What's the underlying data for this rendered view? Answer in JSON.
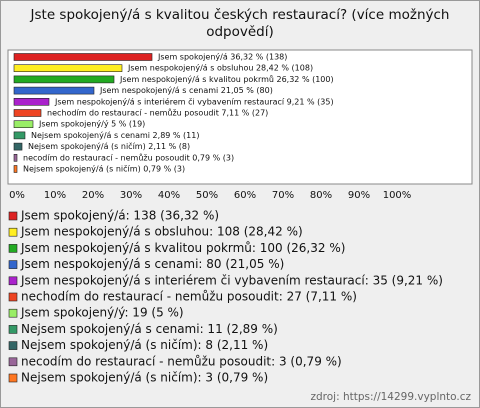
{
  "chart_data": {
    "type": "hbar",
    "title": "Jste spokojený/á s kvalitou českých restaurací? (více možných odpovědí)",
    "categories": [
      "Jsem spokojený/á: 138 (36,32 %)",
      "Jsem nespokojený/á s obsluhou: 108 (28,42 %)",
      "Jsem nespokojený/á s kvalitou pokrmů: 100 (26,32 %)",
      "Jsem nespokojený/á s cenami: 80 (21,05 %)",
      "Jsem nespokojený/á s interiérem či vybavením restaurací: 35 (9,21 %)",
      "nechodím do restaurací - nemůžu posoudit: 27 (7,11 %)",
      "Jsem spokojený/ý: 19 (5 %)",
      "Nejsem spokojený/á s cenami: 11 (2,89 %)",
      "Nejsem spokojený/á (s ničím): 8 (2,11 %)",
      "necodím do restaurací - nemůžu posoudit: 3 (0,79 %)",
      "Nejsem spokojený/á (s ničím): 3 (0,79 %)"
    ],
    "values": [
      36.32,
      28.42,
      26.32,
      21.05,
      9.21,
      7.11,
      5,
      2.89,
      2.11,
      0.79,
      0.79
    ],
    "value_labels": [
      "Jsem spokojený/á 36,32 % (138)",
      "Jsem nespokojený/á s obsluhou 28,42 % (108)",
      "Jsem nespokojený/á s kvalitou pokrmů 26,32 % (100)",
      "Jsem nespokojený/á s cenami 21,05 % (80)",
      "Jsem nespokojený/á s interiérem či vybavením restaurací 9,21 % (35)",
      "nechodím do restaurací - nemůžu posoudit 7,11 % (27)",
      "Jsem spokojený/ý 5 % (19)",
      "Nejsem spokojený/á s cenami 2,89 % (11)",
      "Nejsem spokojený/á (s ničím) 2,11 % (8)",
      "necodím do restaurací - nemůžu posoudit 0,79 % (3)",
      "Nejsem spokojený/á (s ničím) 0,79 % (3)"
    ],
    "colors": [
      "#dd2222",
      "#ffee22",
      "#22aa22",
      "#3366cc",
      "#aa22cc",
      "#ee4422",
      "#99ee66",
      "#339966",
      "#336666",
      "#996699",
      "#ff7722"
    ],
    "xlim": [
      0,
      100
    ],
    "xticks": [
      {
        "value": 0,
        "label": "0%"
      },
      {
        "value": 10,
        "label": "10%"
      },
      {
        "value": 20,
        "label": "20%"
      },
      {
        "value": 30,
        "label": "30%"
      },
      {
        "value": 40,
        "label": "40%"
      },
      {
        "value": 50,
        "label": "50%"
      },
      {
        "value": 60,
        "label": "60%"
      },
      {
        "value": 70,
        "label": "70%"
      },
      {
        "value": 80,
        "label": "80%"
      },
      {
        "value": 90,
        "label": "90%"
      },
      {
        "value": 100,
        "label": "100%"
      }
    ],
    "source": "zdroj: https://14299.vyplnto.cz"
  }
}
